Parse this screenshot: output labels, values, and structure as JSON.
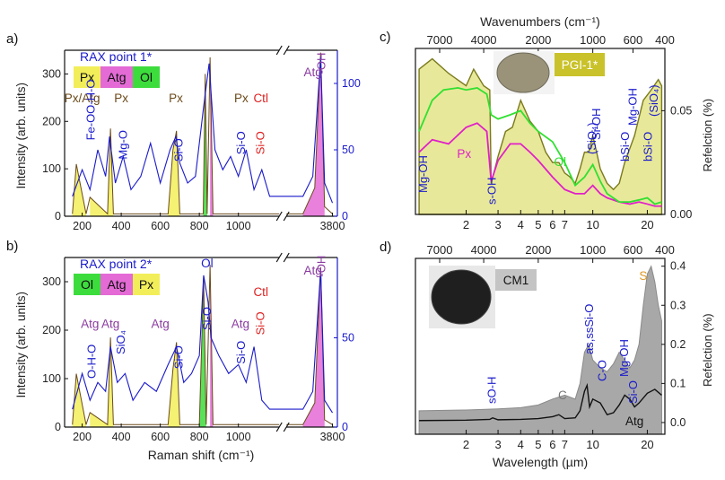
{
  "colors": {
    "blue": "#1a1acc",
    "px": "#f2ee5a",
    "atg": "#e46ad6",
    "ol": "#3ddc3d",
    "olive": "#7a7a1c",
    "dark": "#222222",
    "red": "#e02020",
    "orange": "#e09a2a",
    "gray": "#a8a8a8",
    "pxline": "#e020c8",
    "olline": "#30e030"
  },
  "chart_data": [
    {
      "id": "a",
      "type": "line",
      "panel_label": "a)",
      "xlabel": "",
      "ylabel": "Intensity (arb. units)",
      "xticks": [
        "200",
        "400",
        "600",
        "800",
        "1000",
        "3800"
      ],
      "yticks_left": [
        "0",
        "100",
        "200",
        "300"
      ],
      "ylim_left": [
        0,
        350
      ],
      "yticks_right": [
        "0",
        "50",
        "100"
      ],
      "ylim_right": [
        0,
        125
      ],
      "axis_break": true,
      "title": "RAX point 1*",
      "legend": [
        "Px",
        "Atg",
        "Ol"
      ],
      "series": [
        {
          "name": "",
          "axis": "right",
          "x": [
            150,
            200,
            240,
            280,
            320,
            340,
            370,
            410,
            450,
            500,
            550,
            600,
            650,
            680,
            700,
            740,
            780,
            820,
            850,
            880,
            920,
            960,
            1000,
            1040,
            1080,
            1120,
            1160,
            3500,
            3600,
            3680,
            3720,
            3800
          ],
          "y": [
            15,
            35,
            20,
            50,
            30,
            60,
            25,
            45,
            20,
            30,
            55,
            25,
            50,
            60,
            40,
            25,
            30,
            80,
            115,
            50,
            35,
            45,
            30,
            50,
            20,
            35,
            15,
            15,
            30,
            120,
            25,
            10
          ]
        },
        {
          "name": "",
          "axis": "left",
          "x": [
            150,
            170,
            220,
            240,
            330,
            345,
            360,
            640,
            665,
            683,
            700,
            820,
            830,
            840,
            855,
            870,
            1000,
            3500,
            3620,
            3680,
            3720,
            3800
          ],
          "y": [
            5,
            110,
            5,
            40,
            5,
            185,
            5,
            5,
            140,
            180,
            5,
            5,
            300,
            5,
            335,
            5,
            5,
            5,
            60,
            345,
            20,
            5
          ]
        }
      ],
      "annotations": [
        {
          "text": "Px/Atg",
          "x": 200,
          "y": 240
        },
        {
          "text": "Px",
          "x": 400,
          "y": 240
        },
        {
          "text": "Px",
          "x": 680,
          "y": 240
        },
        {
          "text": "Px",
          "x": 1015,
          "y": 240
        },
        {
          "text": "Ctl",
          "x": 1115,
          "y": 240
        },
        {
          "text": "Atg",
          "x": 3600,
          "y": 295
        },
        {
          "text": "Fe-OO-H-O",
          "x": 245,
          "y": 160
        },
        {
          "text": "Mg-O",
          "x": 410,
          "y": 120
        },
        {
          "text": "Si-O",
          "x": 695,
          "y": 115
        },
        {
          "text": "Si-O",
          "x": 1015,
          "y": 130
        },
        {
          "text": "Si-O",
          "x": 1115,
          "y": 130
        },
        {
          "text": "-OH",
          "x": 3690,
          "y": 300
        }
      ]
    },
    {
      "id": "b",
      "type": "line",
      "panel_label": "b)",
      "xlabel": "Raman shift (cm⁻¹)",
      "ylabel": "Intensity (arb. units)",
      "xticks": [
        "200",
        "400",
        "600",
        "800",
        "1000",
        "3800"
      ],
      "yticks_left": [
        "0",
        "100",
        "200",
        "300"
      ],
      "ylim_left": [
        0,
        350
      ],
      "yticks_right": [
        "0",
        "50"
      ],
      "ylim_right": [
        0,
        95
      ],
      "axis_break": true,
      "title": "RAX point 2*",
      "legend": [
        "Ol",
        "Atg",
        "Px"
      ],
      "series": [
        {
          "name": "",
          "axis": "right",
          "x": [
            150,
            200,
            240,
            280,
            320,
            345,
            380,
            420,
            460,
            520,
            580,
            640,
            683,
            720,
            760,
            800,
            822,
            845,
            860,
            900,
            950,
            1000,
            1040,
            1080,
            1120,
            1160,
            3500,
            3600,
            3680,
            3720,
            3800
          ],
          "y": [
            10,
            30,
            15,
            25,
            20,
            45,
            25,
            30,
            15,
            25,
            20,
            35,
            45,
            25,
            30,
            40,
            85,
            70,
            50,
            40,
            30,
            35,
            25,
            45,
            15,
            10,
            10,
            20,
            88,
            15,
            8
          ]
        },
        {
          "name": "",
          "axis": "left",
          "x": [
            150,
            170,
            220,
            240,
            330,
            345,
            360,
            640,
            665,
            683,
            700,
            800,
            822,
            835,
            855,
            870,
            1000,
            3500,
            3620,
            3680,
            3720,
            3800
          ],
          "y": [
            5,
            110,
            5,
            30,
            5,
            185,
            5,
            5,
            120,
            175,
            5,
            5,
            310,
            5,
            335,
            5,
            5,
            5,
            50,
            330,
            15,
            5
          ]
        }
      ],
      "annotations": [
        {
          "text": "Atg",
          "x": 240,
          "y": 205
        },
        {
          "text": "Atg",
          "x": 345,
          "y": 205
        },
        {
          "text": "Atg",
          "x": 600,
          "y": 205
        },
        {
          "text": "Atg",
          "x": 1010,
          "y": 205
        },
        {
          "text": "Ctl",
          "x": 1115,
          "y": 270
        },
        {
          "text": "Atg",
          "x": 3600,
          "y": 315
        },
        {
          "text": "O-H-O",
          "x": 250,
          "y": 100
        },
        {
          "text": "SiO₄",
          "x": 400,
          "y": 150
        },
        {
          "text": "Si-O",
          "x": 695,
          "y": 120
        },
        {
          "text": "Si-O",
          "x": 840,
          "y": 200
        },
        {
          "text": "Ol",
          "x": 840,
          "y": 330
        },
        {
          "text": "Si-O",
          "x": 1015,
          "y": 130
        },
        {
          "text": "Si-O",
          "x": 1115,
          "y": 190
        },
        {
          "text": "-OH",
          "x": 3690,
          "y": 310
        }
      ]
    },
    {
      "id": "c",
      "type": "area",
      "panel_label": "c)",
      "top_axis_label": "Wavenumbers (cm⁻¹)",
      "top_ticks": [
        "7000",
        "4000",
        "2000",
        "1000",
        "600",
        "400"
      ],
      "xticks": [
        "2",
        "3",
        "4",
        "5",
        "6",
        "7",
        "10",
        "20"
      ],
      "ylabel_right": "Refelction (%)",
      "yticks_right": [
        "0.00",
        "0.05"
      ],
      "ylim_right": [
        0,
        0.08
      ],
      "inset_label": "PGI-1*",
      "series": [
        {
          "name": "",
          "x": [
            1.1,
            1.3,
            1.6,
            2.0,
            2.2,
            2.5,
            2.7,
            2.75,
            3.0,
            3.3,
            3.6,
            4.0,
            4.5,
            5.0,
            5.5,
            6.0,
            6.5,
            7.0,
            7.5,
            8.0,
            8.5,
            9.0,
            9.5,
            10.0,
            10.5,
            11.0,
            12.0,
            13.0,
            14.0,
            15.0,
            17.0,
            19.0,
            21.0,
            23.0,
            24.0
          ],
          "y": [
            0.07,
            0.075,
            0.068,
            0.062,
            0.07,
            0.062,
            0.06,
            0.015,
            0.028,
            0.04,
            0.042,
            0.055,
            0.045,
            0.04,
            0.03,
            0.025,
            0.025,
            0.02,
            0.018,
            0.015,
            0.022,
            0.03,
            0.03,
            0.038,
            0.03,
            0.022,
            0.015,
            0.012,
            0.015,
            0.025,
            0.038,
            0.055,
            0.06,
            0.065,
            0.062
          ]
        },
        {
          "name": "Px",
          "x": [
            1.1,
            1.3,
            1.6,
            2.0,
            2.3,
            2.6,
            2.75,
            3.0,
            3.5,
            4.0,
            4.5,
            5.0,
            6.0,
            7.0,
            8.0,
            9.0,
            10.0,
            11.0,
            12.0,
            14.0,
            16.0,
            18.0,
            20.0,
            22.0,
            24.0
          ],
          "y": [
            0.03,
            0.036,
            0.034,
            0.042,
            0.044,
            0.04,
            0.016,
            0.026,
            0.034,
            0.034,
            0.03,
            0.026,
            0.018,
            0.012,
            0.01,
            0.01,
            0.014,
            0.01,
            0.008,
            0.006,
            0.005,
            0.006,
            0.005,
            0.004,
            0.004
          ]
        },
        {
          "name": "Ol",
          "x": [
            1.1,
            1.3,
            1.5,
            1.8,
            2.0,
            2.3,
            2.6,
            2.75,
            3.0,
            3.5,
            4.0,
            4.5,
            5.0,
            6.0,
            7.0,
            8.0,
            9.0,
            10.0,
            11.0,
            12.0,
            14.0,
            16.0,
            18.0,
            20.0,
            22.0,
            24.0
          ],
          "y": [
            0.04,
            0.055,
            0.06,
            0.061,
            0.06,
            0.061,
            0.058,
            0.048,
            0.046,
            0.048,
            0.05,
            0.044,
            0.04,
            0.035,
            0.025,
            0.014,
            0.018,
            0.024,
            0.016,
            0.01,
            0.006,
            0.006,
            0.007,
            0.008,
            0.005,
            0.006
          ]
        }
      ],
      "annotations": [
        {
          "text": "Mg-OH",
          "x": 1.15
        },
        {
          "text": "Px",
          "x": 1.95
        },
        {
          "text": "s-OH",
          "x": 2.75
        },
        {
          "text": "Ol",
          "x": 6.6
        },
        {
          "text": "(SiO₄)",
          "x": 9.8
        },
        {
          "text": "Si-OH",
          "x": 10.4
        },
        {
          "text": "bSi-O",
          "x": 15.0
        },
        {
          "text": "Mg-OH",
          "x": 16.5
        },
        {
          "text": "bSi-O",
          "x": 20.0
        },
        {
          "text": "(SiO₄)",
          "x": 21.6
        }
      ]
    },
    {
      "id": "d",
      "type": "area",
      "panel_label": "d)",
      "xlabel": "Wavelength (µm)",
      "top_ticks": [
        "7000",
        "4000",
        "2000",
        "1000",
        "600",
        "400"
      ],
      "xticks": [
        "2",
        "3",
        "4",
        "5",
        "6",
        "7",
        "10",
        "20"
      ],
      "ylabel_right": "Refelction (%)",
      "yticks_right": [
        "0.0",
        "0.1",
        "0.2",
        "0.3",
        "0.4"
      ],
      "ylim_right": [
        -0.03,
        0.42
      ],
      "inset_label": "CM1",
      "series": [
        {
          "name": "",
          "x": [
            1.1,
            2.0,
            3.0,
            4.0,
            5.0,
            6.0,
            7.0,
            8.0,
            8.5,
            9.0,
            9.5,
            10.0,
            11.0,
            12.0,
            13.0,
            14.0,
            15.0,
            16.0,
            17.0,
            18.0,
            19.0,
            20.0,
            21.0,
            22.0,
            23.0,
            24.0
          ],
          "y": [
            0.03,
            0.032,
            0.035,
            0.038,
            0.045,
            0.06,
            0.07,
            0.06,
            0.1,
            0.18,
            0.2,
            0.16,
            0.14,
            0.13,
            0.15,
            0.18,
            0.16,
            0.14,
            0.16,
            0.2,
            0.3,
            0.38,
            0.4,
            0.36,
            0.3,
            0.26
          ]
        },
        {
          "name": "Atg",
          "x": [
            1.1,
            2.0,
            2.7,
            2.8,
            3.0,
            4.0,
            5.0,
            6.0,
            6.5,
            7.0,
            8.0,
            8.5,
            9.0,
            9.3,
            9.6,
            10.0,
            11.0,
            12.0,
            13.0,
            14.0,
            15.0,
            16.0,
            17.0,
            18.0,
            20.0,
            22.0,
            24.0
          ],
          "y": [
            0.005,
            0.006,
            0.008,
            0.012,
            0.007,
            0.008,
            0.01,
            0.015,
            0.02,
            0.01,
            0.012,
            0.03,
            0.08,
            0.095,
            0.04,
            0.06,
            0.05,
            0.02,
            0.025,
            0.045,
            0.07,
            0.06,
            0.04,
            0.05,
            0.075,
            0.085,
            0.07
          ]
        }
      ],
      "annotations": [
        {
          "text": "sO-H",
          "x": 2.75
        },
        {
          "text": "C",
          "x": 6.8
        },
        {
          "text": "as,ssSi-O",
          "x": 9.5
        },
        {
          "text": "C-O",
          "x": 11.2
        },
        {
          "text": "Mg-OH",
          "x": 14.8
        },
        {
          "text": "Si-O",
          "x": 16.6
        },
        {
          "text": "Atg",
          "x": 17.0
        },
        {
          "text": "S",
          "x": 19.0
        }
      ]
    }
  ]
}
